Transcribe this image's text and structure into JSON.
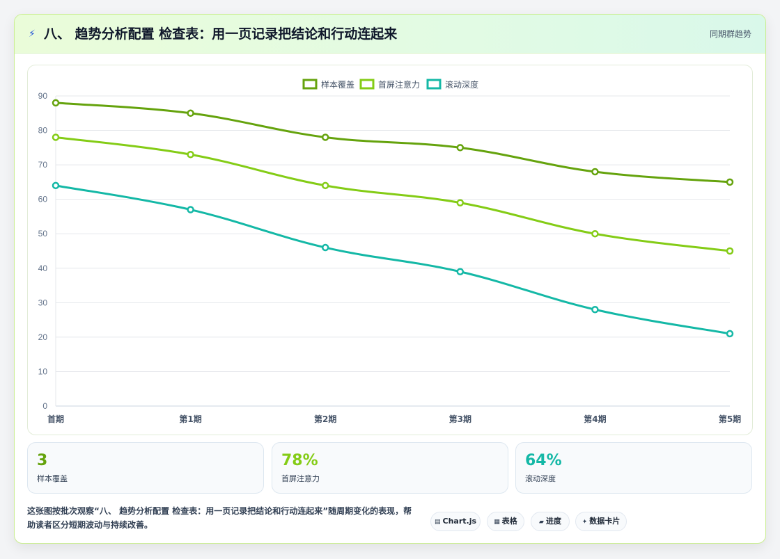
{
  "header": {
    "icon": "lightning-icon",
    "title": "八、 趋势分析配置 检查表：用一页记录把结论和行动连起来",
    "right_link": "同期群趋势"
  },
  "colors": {
    "series1": "#65a30d",
    "series2": "#84cc16",
    "series3": "#14b8a6",
    "grid": "#e5e7eb",
    "tick": "#64748b"
  },
  "chart_data": {
    "type": "line",
    "categories": [
      "首期",
      "第1期",
      "第2期",
      "第3期",
      "第4期",
      "第5期"
    ],
    "series": [
      {
        "name": "样本覆盖",
        "values": [
          88,
          85,
          78,
          75,
          68,
          65
        ]
      },
      {
        "name": "首屏注意力",
        "values": [
          78,
          73,
          64,
          59,
          50,
          45
        ]
      },
      {
        "name": "滚动深度",
        "values": [
          64,
          57,
          46,
          39,
          28,
          21
        ]
      }
    ],
    "ylim": [
      0,
      90
    ],
    "yticks": [
      0,
      10,
      20,
      30,
      40,
      50,
      60,
      70,
      80,
      90
    ],
    "grid": true,
    "legend": "top-center"
  },
  "stats": [
    {
      "value": "3",
      "label": "样本覆盖"
    },
    {
      "value": "78%",
      "label": "首屏注意力"
    },
    {
      "value": "64%",
      "label": "滚动深度"
    }
  ],
  "footer": {
    "description": "这张图按批次观察“八、 趋势分析配置 检查表：用一页记录把结论和行动连起来”随周期变化的表现，帮助读者区分短期波动与持续改善。"
  },
  "pills": [
    {
      "icon": "chart-icon",
      "label": "Chart.js"
    },
    {
      "icon": "table-icon",
      "label": "表格"
    },
    {
      "icon": "progress-icon",
      "label": "进度"
    },
    {
      "icon": "sparkle-icon",
      "label": "数据卡片"
    }
  ]
}
